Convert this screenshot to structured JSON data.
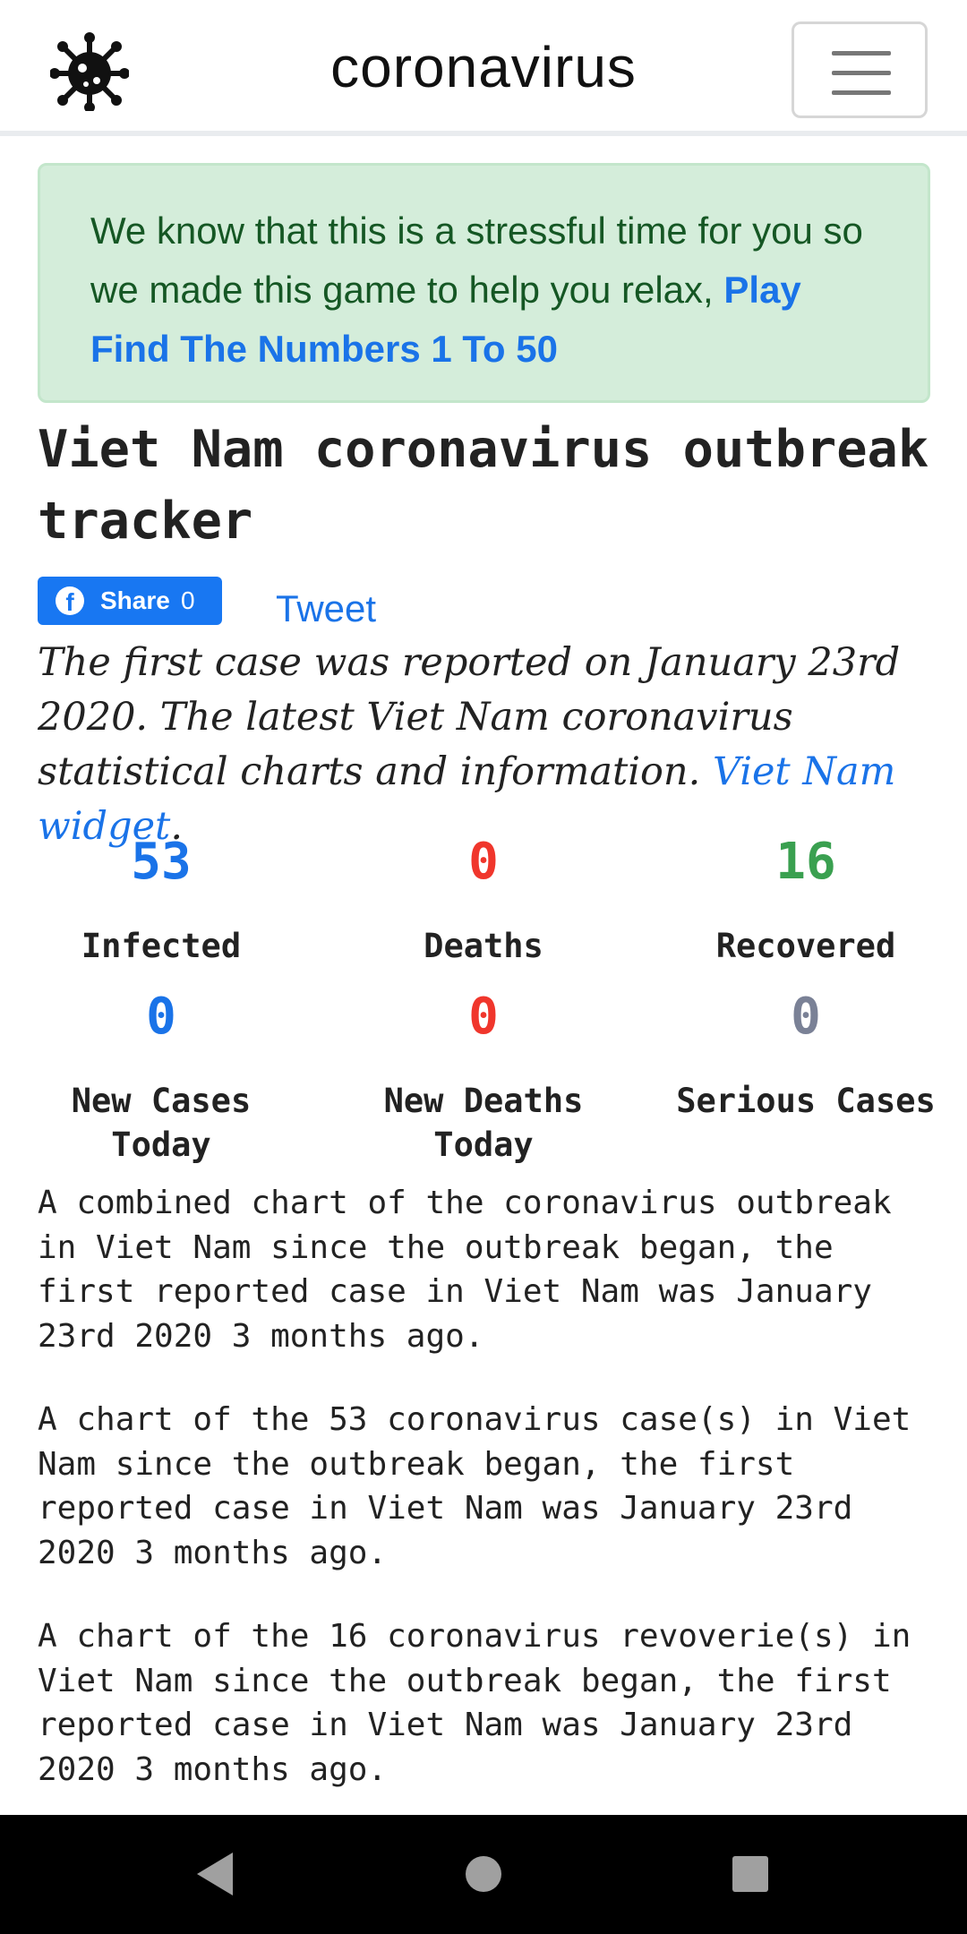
{
  "navbar": {
    "title": "coronavirus",
    "logo_icon": "virus-icon",
    "menu_icon": "hamburger-menu-icon"
  },
  "alert": {
    "text": "We know that this is a stressful time for you so we made this game to help you relax, ",
    "link_text": "Play Find The Numbers 1 To 50"
  },
  "heading": "Viet Nam coronavirus outbreak tracker",
  "share": {
    "fb_label": "Share",
    "fb_count": "0",
    "tweet_label": "Tweet"
  },
  "intro": {
    "text": "The first case was reported on January 23rd 2020. The latest Viet Nam coronavirus statistical charts and information. ",
    "link_text": "Viet Nam widget",
    "trailing": "."
  },
  "stats": {
    "infected": {
      "value": "53",
      "label": "Infected"
    },
    "deaths": {
      "value": "0",
      "label": "Deaths"
    },
    "recovered": {
      "value": "16",
      "label": "Recovered"
    },
    "new_cases": {
      "value": "0",
      "label": "New Cases Today"
    },
    "new_deaths": {
      "value": "0",
      "label": "New Deaths Today"
    },
    "serious": {
      "value": "0",
      "label": "Serious Cases"
    }
  },
  "colors": {
    "infected": "#1a73e8",
    "deaths": "#f0362c",
    "recovered": "#3aa050",
    "serious": "#7a8196"
  },
  "paragraphs": [
    "A combined chart of the coronavirus outbreak in Viet Nam since the outbreak began, the first reported case in Viet Nam was January 23rd 2020 3 months ago.",
    "A chart of the 53 coronavirus case(s) in Viet Nam since the outbreak began, the first reported case in Viet Nam was January 23rd 2020 3 months ago.",
    "A chart of the 16 coronavirus revoverie(s) in Viet Nam since the outbreak began, the first reported case in Viet Nam was January 23rd 2020 3 months ago."
  ],
  "system_nav": {
    "back_icon": "back-triangle-icon",
    "home_icon": "home-circle-icon",
    "recents_icon": "recents-square-icon"
  }
}
